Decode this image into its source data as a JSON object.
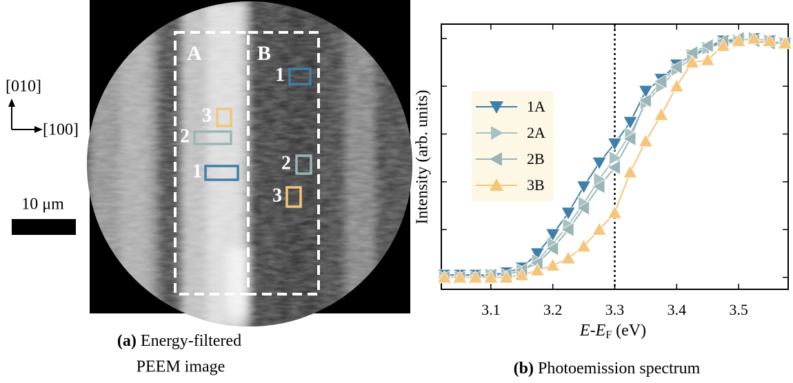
{
  "figure_a": {
    "regions": [
      "A",
      "B"
    ],
    "boxes_a": [
      "3",
      "2",
      "1"
    ],
    "boxes_b": [
      "1",
      "2",
      "3"
    ],
    "axis_up": "[010]",
    "axis_right": "[100]",
    "scale": "10 μm",
    "panel_label": "(a)",
    "caption": [
      "Energy-filtered",
      "PEEM image"
    ]
  },
  "chart_data": {
    "type": "line",
    "ylabel": "Intensity (arb. units)",
    "xlabel_parts": [
      "E",
      "-",
      "E",
      "F",
      "(eV)"
    ],
    "panel_label": "(b)",
    "caption": "Photoemission spectrum",
    "x": [
      3.025,
      3.05,
      3.075,
      3.1,
      3.125,
      3.15,
      3.175,
      3.2,
      3.225,
      3.25,
      3.275,
      3.3,
      3.325,
      3.35,
      3.375,
      3.4,
      3.425,
      3.45,
      3.475,
      3.5,
      3.525,
      3.55,
      3.575
    ],
    "xlim": [
      3.02,
      3.58
    ],
    "xticks": [
      3.1,
      3.2,
      3.3,
      3.4,
      3.5
    ],
    "ylim": [
      -0.05,
      1.06
    ],
    "yticks": [
      0,
      0.2,
      0.4,
      0.6,
      0.8,
      1
    ],
    "vline": 3.3,
    "series": [
      {
        "name": "1A",
        "color": "#3f7fa8",
        "marker": "down",
        "values": [
          0.01,
          0.01,
          0.01,
          0.01,
          0.02,
          0.04,
          0.1,
          0.18,
          0.27,
          0.38,
          0.48,
          0.56,
          0.65,
          0.78,
          0.83,
          0.89,
          0.93,
          0.96,
          0.99,
          0.99,
          1.0,
          0.99,
          0.98
        ]
      },
      {
        "name": "2A",
        "color": "#a9c1c2",
        "marker": "right",
        "values": [
          0,
          0,
          0,
          0.01,
          0.01,
          0.03,
          0.07,
          0.14,
          0.22,
          0.31,
          0.41,
          0.5,
          0.6,
          0.73,
          0.8,
          0.87,
          0.92,
          0.96,
          0.98,
          0.99,
          1.0,
          0.99,
          0.98
        ]
      },
      {
        "name": "2B",
        "color": "#9bb5b7",
        "marker": "left",
        "values": [
          0,
          0,
          0,
          0.01,
          0.01,
          0.03,
          0.06,
          0.12,
          0.2,
          0.29,
          0.38,
          0.46,
          0.58,
          0.74,
          0.82,
          0.88,
          0.94,
          0.97,
          0.99,
          1.0,
          0.99,
          0.98,
          0.98
        ]
      },
      {
        "name": "3B",
        "color": "#f5c57a",
        "marker": "up",
        "values": [
          0,
          0,
          0,
          0,
          0,
          0.01,
          0.03,
          0.05,
          0.08,
          0.13,
          0.2,
          0.27,
          0.44,
          0.57,
          0.68,
          0.8,
          0.9,
          0.91,
          0.97,
          0.99,
          1.0,
          0.99,
          0.98
        ]
      }
    ]
  }
}
